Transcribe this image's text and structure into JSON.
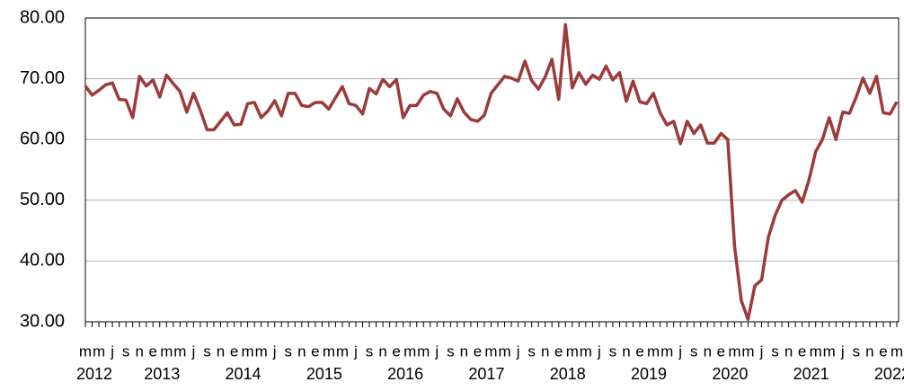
{
  "chart_data": {
    "type": "line",
    "categories": [
      "m",
      null,
      "m",
      null,
      "j",
      null,
      "s",
      null,
      "n",
      null,
      "e",
      null,
      "m",
      null,
      "m",
      null,
      "j",
      null,
      "s",
      null,
      "n",
      null,
      "e",
      null,
      "m",
      null,
      "m",
      null,
      "j",
      null,
      "s",
      null,
      "n",
      null,
      "e",
      null,
      "m",
      null,
      "m",
      null,
      "j",
      null,
      "s",
      null,
      "n",
      null,
      "e",
      null,
      "m",
      null,
      "m",
      null,
      "j",
      null,
      "s",
      null,
      "n",
      null,
      "e",
      null,
      "m",
      null,
      "m",
      null,
      "j",
      null,
      "s",
      null,
      "n",
      null,
      "e",
      null,
      "m",
      null,
      "m",
      null,
      "j",
      null,
      "s",
      null,
      "n",
      null,
      "e",
      null,
      "m",
      null,
      "m",
      null,
      "j",
      null,
      "s",
      null,
      "n",
      null,
      "e",
      null,
      "m",
      null,
      "m",
      null,
      "j",
      null,
      "s",
      null,
      "n",
      null,
      "e",
      null,
      "m",
      null,
      "m",
      null,
      "j",
      null,
      "s",
      null,
      "n",
      null,
      "e",
      null,
      "m"
    ],
    "category_groups": [
      {
        "label": "2012",
        "count": 10
      },
      {
        "label": "2013",
        "count": 12
      },
      {
        "label": "2014",
        "count": 12
      },
      {
        "label": "2015",
        "count": 12
      },
      {
        "label": "2016",
        "count": 12
      },
      {
        "label": "2017",
        "count": 12
      },
      {
        "label": "2018",
        "count": 12
      },
      {
        "label": "2019",
        "count": 12
      },
      {
        "label": "2020",
        "count": 12
      },
      {
        "label": "2021",
        "count": 12
      },
      {
        "label": "2022",
        "count": 3
      }
    ],
    "series": [
      {
        "color": "#9b3b3b",
        "values": [
          68.8,
          67.3,
          68.1,
          69.0,
          69.3,
          66.6,
          66.5,
          63.6,
          70.4,
          68.8,
          69.8,
          67.0,
          70.6,
          69.2,
          67.9,
          64.5,
          67.6,
          64.8,
          61.6,
          61.6,
          63.0,
          64.4,
          62.4,
          62.5,
          65.9,
          66.1,
          63.6,
          64.7,
          66.4,
          63.9,
          67.6,
          67.6,
          65.6,
          65.4,
          66.1,
          66.1,
          65.0,
          66.9,
          68.7,
          65.9,
          65.6,
          64.2,
          68.4,
          67.5,
          69.9,
          68.7,
          69.9,
          63.6,
          65.6,
          65.6,
          67.3,
          67.9,
          67.6,
          65.0,
          63.9,
          66.7,
          64.5,
          63.3,
          63.0,
          64.0,
          67.6,
          69.0,
          70.4,
          70.1,
          69.6,
          72.9,
          69.7,
          68.3,
          70.3,
          73.2,
          66.6,
          78.9,
          68.5,
          71.0,
          69.1,
          70.6,
          69.9,
          72.1,
          69.8,
          71.0,
          66.3,
          69.6,
          66.2,
          65.9,
          67.6,
          64.4,
          62.4,
          63.0,
          59.3,
          63.0,
          61.0,
          62.4,
          59.4,
          59.4,
          61.0,
          60.0,
          42.5,
          33.5,
          30.4,
          35.9,
          36.9,
          43.9,
          47.5,
          50.0,
          50.9,
          51.6,
          49.7,
          53.3,
          58.0,
          60.0,
          63.6,
          60.0,
          64.5,
          64.3,
          67.0,
          70.1,
          67.6,
          70.4,
          64.4,
          64.2,
          66.2
        ]
      }
    ],
    "ylim": [
      30,
      80
    ],
    "yticks": [
      {
        "value": 30,
        "label": "30.00"
      },
      {
        "value": 40,
        "label": "40.00"
      },
      {
        "value": 50,
        "label": "50.00"
      },
      {
        "value": 60,
        "label": "60.00"
      },
      {
        "value": 70,
        "label": "70.00"
      },
      {
        "value": 80,
        "label": "80.00"
      }
    ],
    "grid": true
  }
}
